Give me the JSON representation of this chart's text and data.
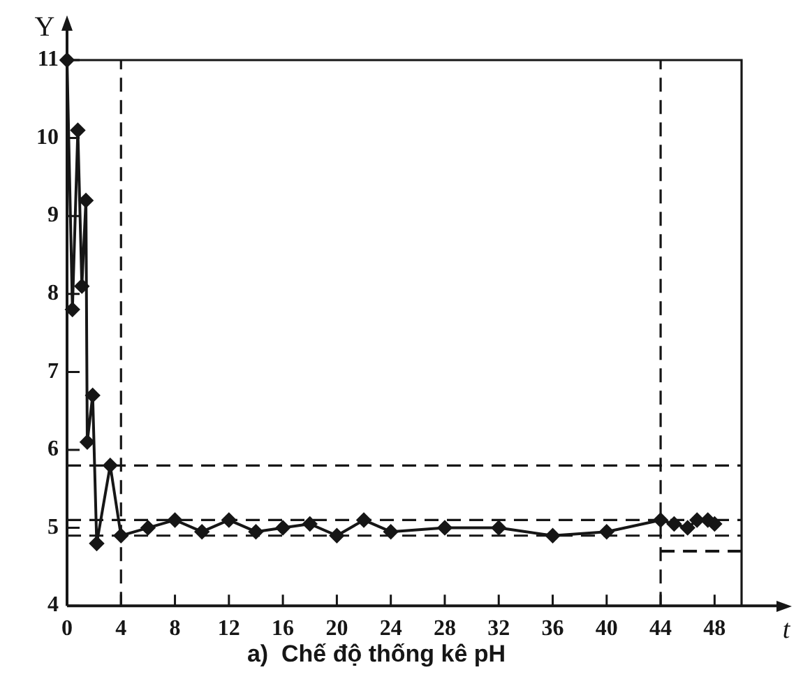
{
  "chart_data": {
    "type": "line",
    "title": "a)  Chế độ thống kê pH",
    "xlabel": "t",
    "ylabel": "Y",
    "xlim": [
      0,
      50
    ],
    "ylim": [
      4,
      11
    ],
    "xticks": [
      0,
      4,
      8,
      12,
      16,
      20,
      24,
      28,
      32,
      36,
      40,
      44,
      48
    ],
    "yticks": [
      4,
      5,
      6,
      7,
      8,
      9,
      10,
      11
    ],
    "marker": "diamond",
    "line_style": "solid",
    "series": [
      {
        "color": "#161616",
        "x": [
          0,
          0.4,
          0.8,
          1.1,
          1.4,
          1.5,
          1.9,
          2.2,
          3.2,
          4,
          6,
          8,
          10,
          12,
          14,
          16,
          18,
          20,
          22,
          24,
          28,
          32,
          36,
          40,
          44,
          45,
          46,
          46.7,
          47.5,
          48
        ],
        "values": [
          11,
          7.8,
          10.1,
          8.1,
          9.2,
          6.1,
          6.7,
          4.8,
          5.8,
          4.9,
          5.0,
          5.1,
          4.95,
          5.1,
          4.95,
          5.0,
          5.05,
          4.9,
          5.1,
          4.95,
          5.0,
          5.0,
          4.9,
          4.95,
          5.1,
          5.05,
          5.0,
          5.1,
          5.1,
          5.05
        ]
      },
      {
        "type": "line",
        "color": "#161616",
        "x": [
          44,
          50
        ],
        "values": [
          4.7,
          4.7
        ],
        "marker": "none",
        "line_style": "dashed"
      }
    ],
    "ref_lines": [
      {
        "axis": "x",
        "value": 4,
        "line_style": "dashed",
        "color": "#161616"
      },
      {
        "axis": "x",
        "value": 44,
        "line_style": "dashed",
        "color": "#161616"
      },
      {
        "axis": "y",
        "value": 5.8,
        "line_style": "dashed",
        "color": "#161616"
      },
      {
        "axis": "y",
        "value": 5.1,
        "line_style": "dashed",
        "color": "#161616"
      },
      {
        "axis": "y",
        "value": 4.9,
        "line_style": "dashed",
        "color": "#161616"
      }
    ]
  }
}
